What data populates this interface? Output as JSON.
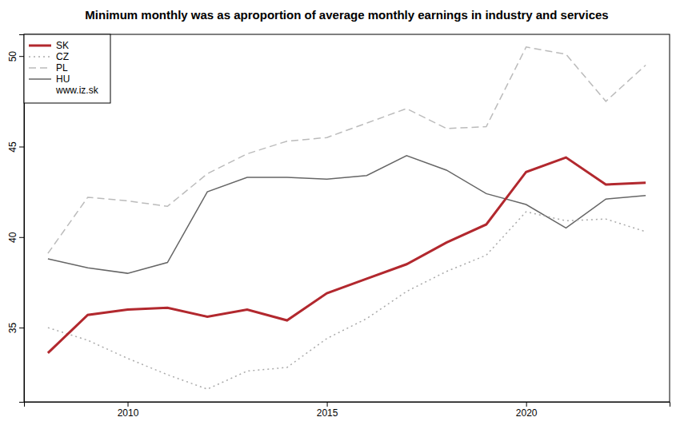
{
  "chart_data": {
    "type": "line",
    "title": "Minimum monthly was as aproportion of average monthly earnings in industry and services",
    "annotations": [
      "www.iz.sk"
    ],
    "x": [
      2008,
      2009,
      2010,
      2011,
      2012,
      2013,
      2014,
      2015,
      2016,
      2017,
      2018,
      2019,
      2020,
      2021,
      2022,
      2023
    ],
    "series": [
      {
        "name": "SK",
        "color": "#b2282e",
        "line_style": "solid",
        "values": [
          33.6,
          35.7,
          36.0,
          36.1,
          35.6,
          36.0,
          35.4,
          36.9,
          37.7,
          38.5,
          39.7,
          40.7,
          43.6,
          44.4,
          42.9,
          43.0
        ]
      },
      {
        "name": "CZ",
        "color": "#aaaaaa",
        "line_style": "dotted",
        "values": [
          35.0,
          34.3,
          33.3,
          32.4,
          31.6,
          32.6,
          32.8,
          34.4,
          35.5,
          37.0,
          38.1,
          39.0,
          41.4,
          40.9,
          41.0,
          40.3
        ]
      },
      {
        "name": "PL",
        "color": "#bbbbbb",
        "line_style": "dashed",
        "values": [
          39.1,
          42.2,
          42.0,
          41.7,
          43.5,
          44.6,
          45.3,
          45.5,
          46.3,
          47.1,
          46.0,
          46.1,
          50.5,
          50.1,
          47.5,
          49.5
        ]
      },
      {
        "name": "HU",
        "color": "#666666",
        "line_style": "solid",
        "values": [
          38.8,
          38.3,
          38.0,
          38.6,
          42.5,
          43.3,
          43.3,
          43.2,
          43.4,
          44.5,
          43.7,
          42.4,
          41.8,
          40.5,
          42.1,
          42.3
        ]
      }
    ],
    "xlim": [
      2007.4,
      2023.6
    ],
    "xticks": [
      2010,
      2015,
      2020
    ],
    "ylim": [
      30.9,
      51.2
    ],
    "yticks": [
      35,
      40,
      45,
      50
    ],
    "legend": "topleft",
    "grid": false
  }
}
